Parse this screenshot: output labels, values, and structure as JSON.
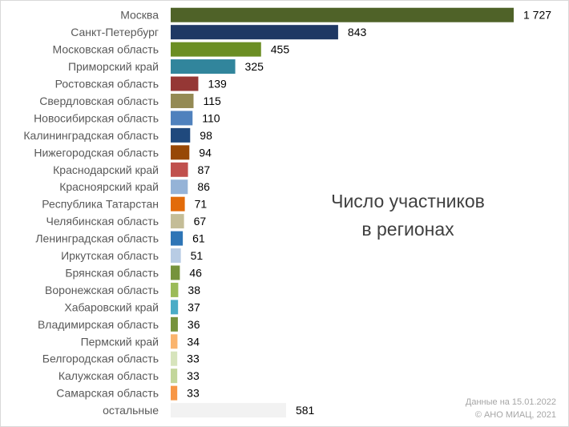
{
  "chart_data": {
    "type": "bar",
    "orientation": "horizontal",
    "title": [
      "Число участников",
      "в регионах"
    ],
    "categories": [
      "Москва",
      "Санкт-Петербург",
      "Московская область",
      "Приморский край",
      "Ростовская область",
      "Свердловская область",
      "Новосибирская область",
      "Калининградская область",
      "Нижегородская область",
      "Краснодарский край",
      "Красноярский край",
      "Республика Татарстан",
      "Челябинская область",
      "Ленинградская область",
      "Иркутская область",
      "Брянская область",
      "Воронежская область",
      "Хабаровский край",
      "Владимирская область",
      "Пермский край",
      "Белгородская область",
      "Калужская область",
      "Самарская область",
      "остальные"
    ],
    "values": [
      1727,
      843,
      455,
      325,
      139,
      115,
      110,
      98,
      94,
      87,
      86,
      71,
      67,
      61,
      51,
      46,
      38,
      37,
      36,
      34,
      33,
      33,
      33,
      581
    ],
    "value_labels": [
      "1 727",
      "843",
      "455",
      "325",
      "139",
      "115",
      "110",
      "98",
      "94",
      "87",
      "86",
      "71",
      "67",
      "61",
      "51",
      "46",
      "38",
      "37",
      "36",
      "34",
      "33",
      "33",
      "33",
      "581"
    ],
    "colors": [
      "#4f6228",
      "#1f3864",
      "#6b8e23",
      "#31859c",
      "#953735",
      "#948a54",
      "#4f81bd",
      "#1f497d",
      "#974806",
      "#c0504d",
      "#95b3d7",
      "#e26b0a",
      "#c4bd97",
      "#2e75b6",
      "#b8cce4",
      "#76933c",
      "#9bbb59",
      "#4bacc6",
      "#77933c",
      "#fab46e",
      "#d7e4bc",
      "#c3d69b",
      "#f79646",
      "#f2f2f2"
    ],
    "xlim": [
      0,
      1727
    ],
    "grid": false,
    "legend": "none",
    "notes": [
      "Данные на 15.01.2022",
      "© АНО МИАЦ, 2021"
    ]
  }
}
